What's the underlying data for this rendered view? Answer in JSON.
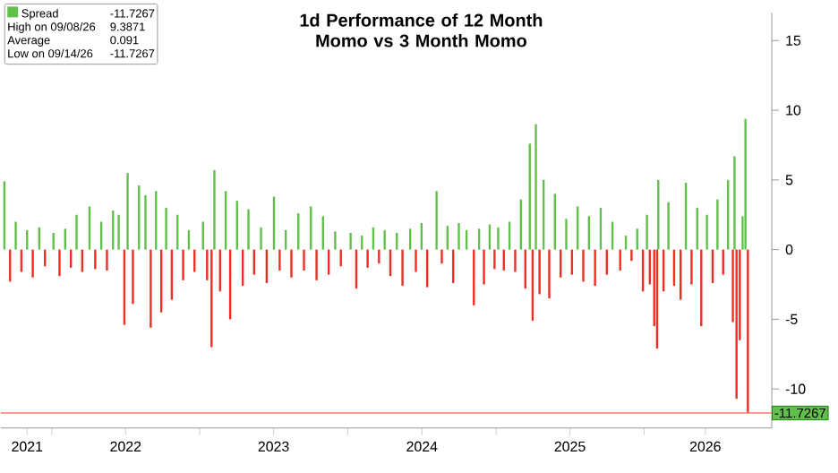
{
  "chart_data": {
    "type": "bar",
    "title": "1d Performance of 12 Month Momo vs 3 Month Momo",
    "x": [
      "2021-09-06",
      "2021-09-20",
      "2021-10-04",
      "2021-10-18",
      "2021-11-01",
      "2021-11-15",
      "2021-12-01",
      "2021-12-15",
      "2022-01-05",
      "2022-01-20",
      "2022-02-03",
      "2022-02-17",
      "2022-03-03",
      "2022-03-17",
      "2022-04-04",
      "2022-04-18",
      "2022-05-03",
      "2022-05-17",
      "2022-06-01",
      "2022-06-15",
      "2022-06-29",
      "2022-07-07",
      "2022-07-20",
      "2022-08-04",
      "2022-08-20",
      "2022-09-02",
      "2022-09-15",
      "2022-09-28",
      "2022-10-10",
      "2022-10-24",
      "2022-11-07",
      "2022-11-21",
      "2022-12-05",
      "2022-12-19",
      "2023-01-09",
      "2023-01-19",
      "2023-01-30",
      "2023-02-06",
      "2023-02-20",
      "2023-03-06",
      "2023-03-17",
      "2023-04-03",
      "2023-04-17",
      "2023-05-01",
      "2023-05-15",
      "2023-06-01",
      "2023-06-15",
      "2023-07-03",
      "2023-07-17",
      "2023-08-01",
      "2023-08-15",
      "2023-09-01",
      "2023-09-15",
      "2023-10-02",
      "2023-10-16",
      "2023-11-01",
      "2023-11-15",
      "2023-12-01",
      "2023-12-15",
      "2024-01-08",
      "2024-01-22",
      "2024-02-05",
      "2024-02-19",
      "2024-03-04",
      "2024-03-18",
      "2024-04-01",
      "2024-04-15",
      "2024-05-01",
      "2024-05-15",
      "2024-06-03",
      "2024-06-17",
      "2024-07-01",
      "2024-07-15",
      "2024-08-07",
      "2024-08-20",
      "2024-09-03",
      "2024-09-17",
      "2024-10-01",
      "2024-10-20",
      "2024-11-07",
      "2024-11-20",
      "2024-12-02",
      "2024-12-16",
      "2024-12-28",
      "2025-01-06",
      "2025-01-20",
      "2025-02-03",
      "2025-02-17",
      "2025-03-03",
      "2025-03-14",
      "2025-03-25",
      "2025-04-01",
      "2025-04-09",
      "2025-04-18",
      "2025-04-28",
      "2025-05-12",
      "2025-05-26",
      "2025-06-09",
      "2025-06-23",
      "2025-07-07",
      "2025-07-21",
      "2025-08-04",
      "2025-08-18",
      "2025-09-02",
      "2025-09-16",
      "2025-10-01",
      "2025-10-15",
      "2025-11-03",
      "2025-11-17",
      "2025-12-01",
      "2025-12-15",
      "2025-12-29",
      "2026-01-08",
      "2026-01-15",
      "2026-01-26",
      "2026-02-02",
      "2026-02-05",
      "2026-02-18",
      "2026-03-02",
      "2026-03-16",
      "2026-04-01",
      "2026-04-14",
      "2026-04-28",
      "2026-05-12",
      "2026-05-22",
      "2026-06-05",
      "2026-06-19",
      "2026-07-01",
      "2026-07-15",
      "2026-07-27",
      "2026-08-08",
      "2026-08-12",
      "2026-08-17",
      "2026-08-25",
      "2026-09-01",
      "2026-09-08",
      "2026-09-14"
    ],
    "series": [
      {
        "name": "Spread",
        "color": "#62bf4c",
        "values": [
          4.9,
          -2.3,
          2.0,
          -1.6,
          1.4,
          -2.0,
          1.6,
          -1.2,
          1.2,
          -1.9,
          1.5,
          -1.3,
          2.5,
          -1.6,
          3.1,
          -1.4,
          2.0,
          -1.5,
          2.8,
          2.5,
          -5.4,
          5.5,
          -3.9,
          4.6,
          3.9,
          -5.6,
          4.2,
          -4.5,
          3.0,
          -3.6,
          2.5,
          -2.2,
          1.4,
          -1.6,
          2.0,
          -2.2,
          -7.0,
          5.7,
          -3.0,
          4.2,
          -5.0,
          3.5,
          -2.6,
          2.9,
          -1.8,
          1.6,
          -2.4,
          3.8,
          -1.5,
          1.4,
          -2.0,
          2.6,
          -1.5,
          3.1,
          -2.2,
          2.4,
          -1.8,
          1.3,
          -1.2,
          1.2,
          -2.8,
          1.0,
          -1.3,
          1.6,
          -1.0,
          1.4,
          -1.9,
          1.2,
          -2.6,
          1.5,
          -1.6,
          1.9,
          -2.7,
          4.2,
          -1.0,
          1.7,
          -2.4,
          1.9,
          1.4,
          -4.0,
          1.5,
          -2.5,
          1.8,
          -1.4,
          1.6,
          -1.5,
          2.0,
          -1.6,
          3.6,
          -2.8,
          7.6,
          -5.1,
          9.0,
          -3.2,
          5.0,
          -3.5,
          4.0,
          -2.0,
          2.2,
          -1.8,
          3.1,
          -2.3,
          2.4,
          -2.6,
          3.0,
          -1.8,
          2.0,
          -1.5,
          1.0,
          -0.8,
          1.5,
          -3.0,
          2.5,
          -2.5,
          -5.5,
          -7.1,
          5.0,
          -3.0,
          3.4,
          -2.6,
          -3.6,
          4.8,
          -2.5,
          3.0,
          -5.5,
          2.5,
          -2.4,
          3.6,
          -1.8,
          5.0,
          -5.2,
          6.7,
          -10.7,
          -6.5,
          2.4,
          9.3871,
          -11.7267
        ],
        "colors": [
          "#62bf4c",
          "#ee2e24",
          "#62bf4c",
          "#ee2e24",
          "#62bf4c",
          "#ee2e24",
          "#62bf4c",
          "#ee2e24",
          "#62bf4c",
          "#ee2e24",
          "#62bf4c",
          "#ee2e24",
          "#62bf4c",
          "#ee2e24",
          "#62bf4c",
          "#ee2e24",
          "#62bf4c",
          "#ee2e24",
          "#62bf4c",
          "#62bf4c",
          "#ee2e24",
          "#62bf4c",
          "#ee2e24",
          "#62bf4c",
          "#62bf4c",
          "#ee2e24",
          "#62bf4c",
          "#ee2e24",
          "#62bf4c",
          "#ee2e24",
          "#62bf4c",
          "#ee2e24",
          "#62bf4c",
          "#ee2e24",
          "#62bf4c",
          "#ee2e24",
          "#ee2e24",
          "#62bf4c",
          "#ee2e24",
          "#62bf4c",
          "#ee2e24",
          "#62bf4c",
          "#ee2e24",
          "#62bf4c",
          "#ee2e24",
          "#62bf4c",
          "#ee2e24",
          "#62bf4c",
          "#ee2e24",
          "#62bf4c",
          "#ee2e24",
          "#62bf4c",
          "#ee2e24",
          "#62bf4c",
          "#ee2e24",
          "#62bf4c",
          "#ee2e24",
          "#62bf4c",
          "#ee2e24",
          "#62bf4c",
          "#ee2e24",
          "#62bf4c",
          "#ee2e24",
          "#62bf4c",
          "#ee2e24",
          "#62bf4c",
          "#ee2e24",
          "#62bf4c",
          "#ee2e24",
          "#62bf4c",
          "#ee2e24",
          "#62bf4c",
          "#ee2e24",
          "#62bf4c",
          "#ee2e24",
          "#62bf4c",
          "#ee2e24",
          "#62bf4c",
          "#62bf4c",
          "#ee2e24",
          "#62bf4c",
          "#ee2e24",
          "#62bf4c",
          "#ee2e24",
          "#62bf4c",
          "#ee2e24",
          "#62bf4c",
          "#ee2e24",
          "#62bf4c",
          "#ee2e24",
          "#62bf4c",
          "#ee2e24",
          "#62bf4c",
          "#ee2e24",
          "#62bf4c",
          "#ee2e24",
          "#62bf4c",
          "#ee2e24",
          "#62bf4c",
          "#ee2e24",
          "#62bf4c",
          "#ee2e24",
          "#62bf4c",
          "#ee2e24",
          "#62bf4c",
          "#ee2e24",
          "#62bf4c",
          "#ee2e24",
          "#62bf4c",
          "#ee2e24",
          "#62bf4c",
          "#ee2e24",
          "#62bf4c",
          "#ee2e24",
          "#ee2e24",
          "#ee2e24",
          "#62bf4c",
          "#ee2e24",
          "#62bf4c",
          "#ee2e24",
          "#ee2e24",
          "#62bf4c",
          "#ee2e24",
          "#62bf4c",
          "#ee2e24",
          "#62bf4c",
          "#ee2e24",
          "#62bf4c",
          "#ee2e24",
          "#62bf4c",
          "#ee2e24",
          "#62bf4c",
          "#ee2e24",
          "#ee2e24",
          "#62bf4c",
          "#62bf4c",
          "#ee2e24"
        ]
      }
    ],
    "xlim": [
      "2021-08-28",
      "2026-11-12"
    ],
    "xticks": [
      {
        "value": "2021-11-01",
        "label": "2021"
      },
      {
        "value": "2022-01-01",
        "label": null
      },
      {
        "value": "2022-07-02",
        "label": "2022"
      },
      {
        "value": "2023-01-01",
        "label": null
      },
      {
        "value": "2023-07-02",
        "label": "2023"
      },
      {
        "value": "2024-01-01",
        "label": null
      },
      {
        "value": "2024-07-02",
        "label": "2024"
      },
      {
        "value": "2025-01-01",
        "label": null
      },
      {
        "value": "2025-07-02",
        "label": "2025"
      },
      {
        "value": "2026-01-01",
        "label": null
      },
      {
        "value": "2026-06-01",
        "label": "2026"
      }
    ],
    "ylim": [
      -12.8,
      17
    ],
    "yticks": [
      -10,
      -5,
      0,
      5,
      10,
      15
    ],
    "ref_lines": [
      {
        "axis": "y",
        "value": -11.7267,
        "label": "-11.7267",
        "color": "#ff7a6e"
      }
    ],
    "legend": "top left",
    "annotations": [
      "-11.7267",
      "High on 09/08/26",
      "9.3871",
      "Average",
      "0.091",
      "Low on 09/14/26",
      "-11.7267"
    ]
  }
}
